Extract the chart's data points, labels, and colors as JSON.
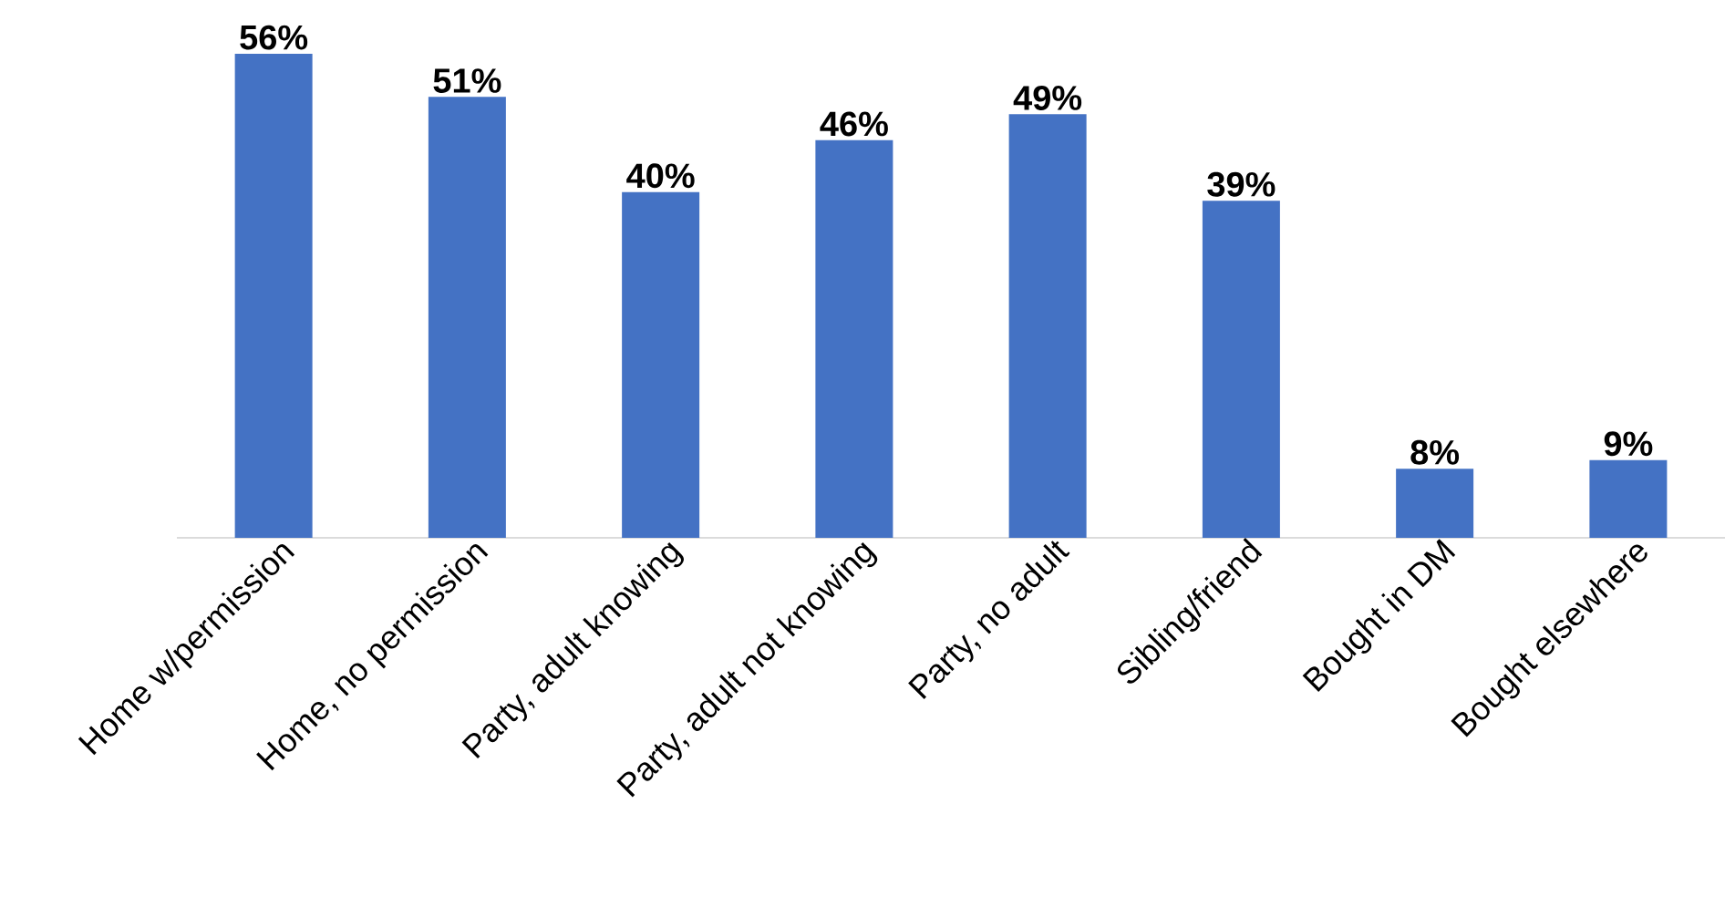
{
  "chart_data": {
    "type": "bar",
    "categories": [
      "Home w/permission",
      "Home, no permission",
      "Party, adult knowing",
      "Party, adult not knowing",
      "Party, no adult",
      "Sibling/friend",
      "Bought in DM",
      "Bought elsewhere"
    ],
    "values": [
      56,
      51,
      40,
      46,
      49,
      39,
      8,
      9
    ],
    "value_labels": [
      "56%",
      "51%",
      "40%",
      "46%",
      "49%",
      "39%",
      "8%",
      "9%"
    ],
    "color": "#4472c4"
  }
}
